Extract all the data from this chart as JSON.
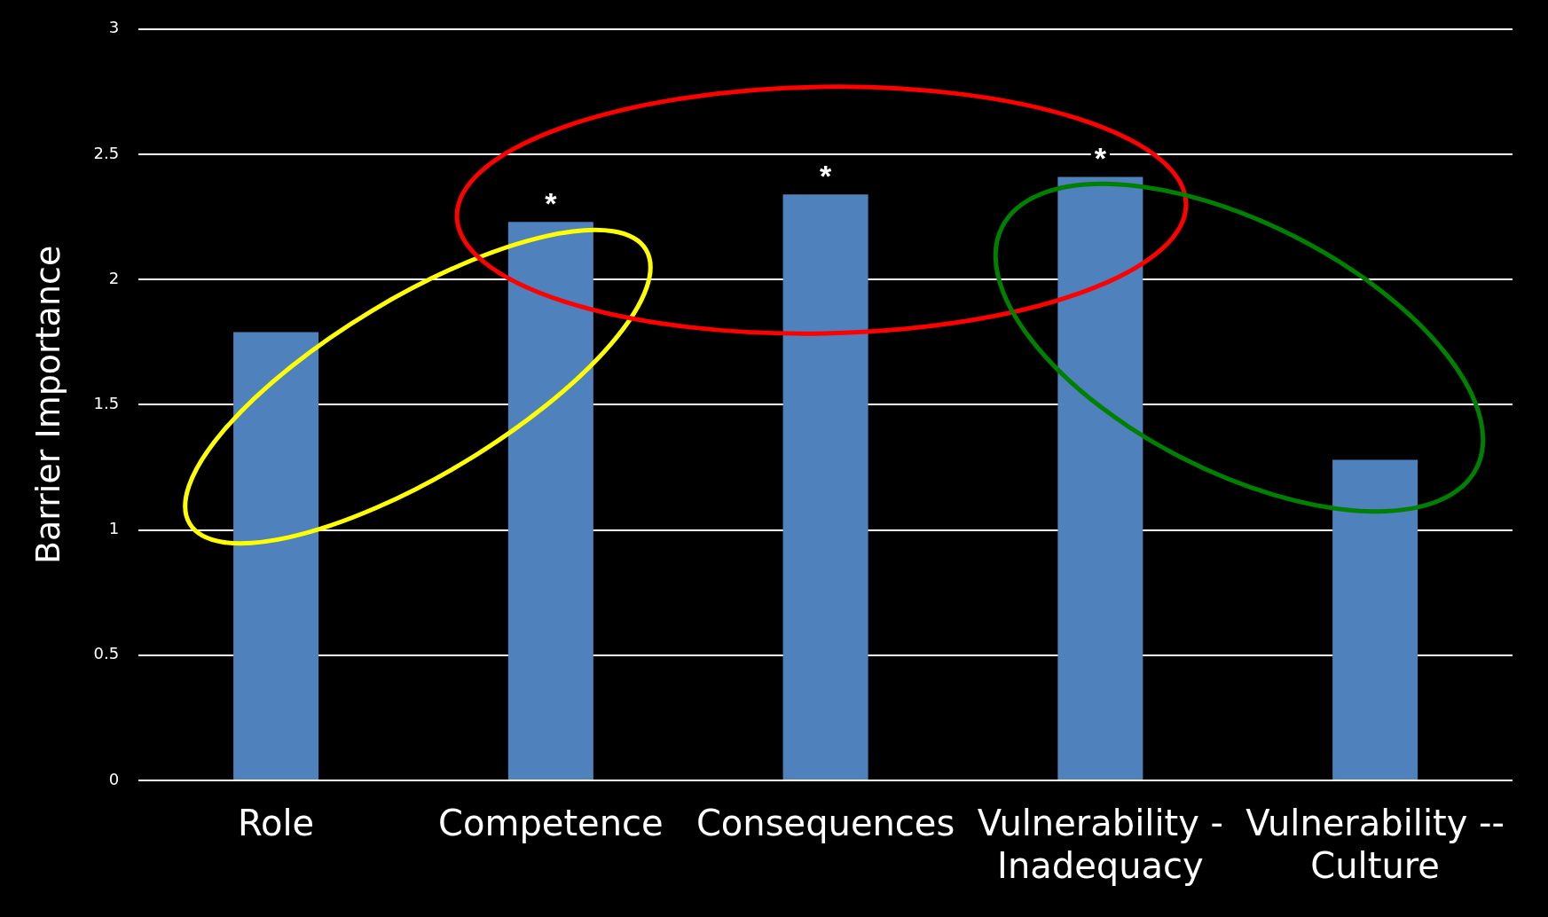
{
  "chart_data": {
    "type": "bar",
    "ylabel": "Barrier Importance",
    "categories": [
      "Role",
      "Competence",
      "Consequences",
      "Vulnerability - Inadequacy",
      "Vulnerability -- Culture"
    ],
    "values": [
      1.79,
      2.23,
      2.34,
      2.41,
      1.28
    ],
    "color": "#4f81bd",
    "ylim": [
      0,
      3
    ],
    "yticks": [
      0,
      0.5,
      1,
      1.5,
      2,
      2.5,
      3
    ],
    "grid": "y",
    "legend": false,
    "annotations": [
      {
        "text": "*",
        "x": "Competence",
        "y": 2.23
      },
      {
        "text": "*",
        "x": "Consequences",
        "y": 2.34
      },
      {
        "text": "*",
        "x": "Vulnerability - Inadequacy",
        "y": 2.41
      }
    ]
  }
}
